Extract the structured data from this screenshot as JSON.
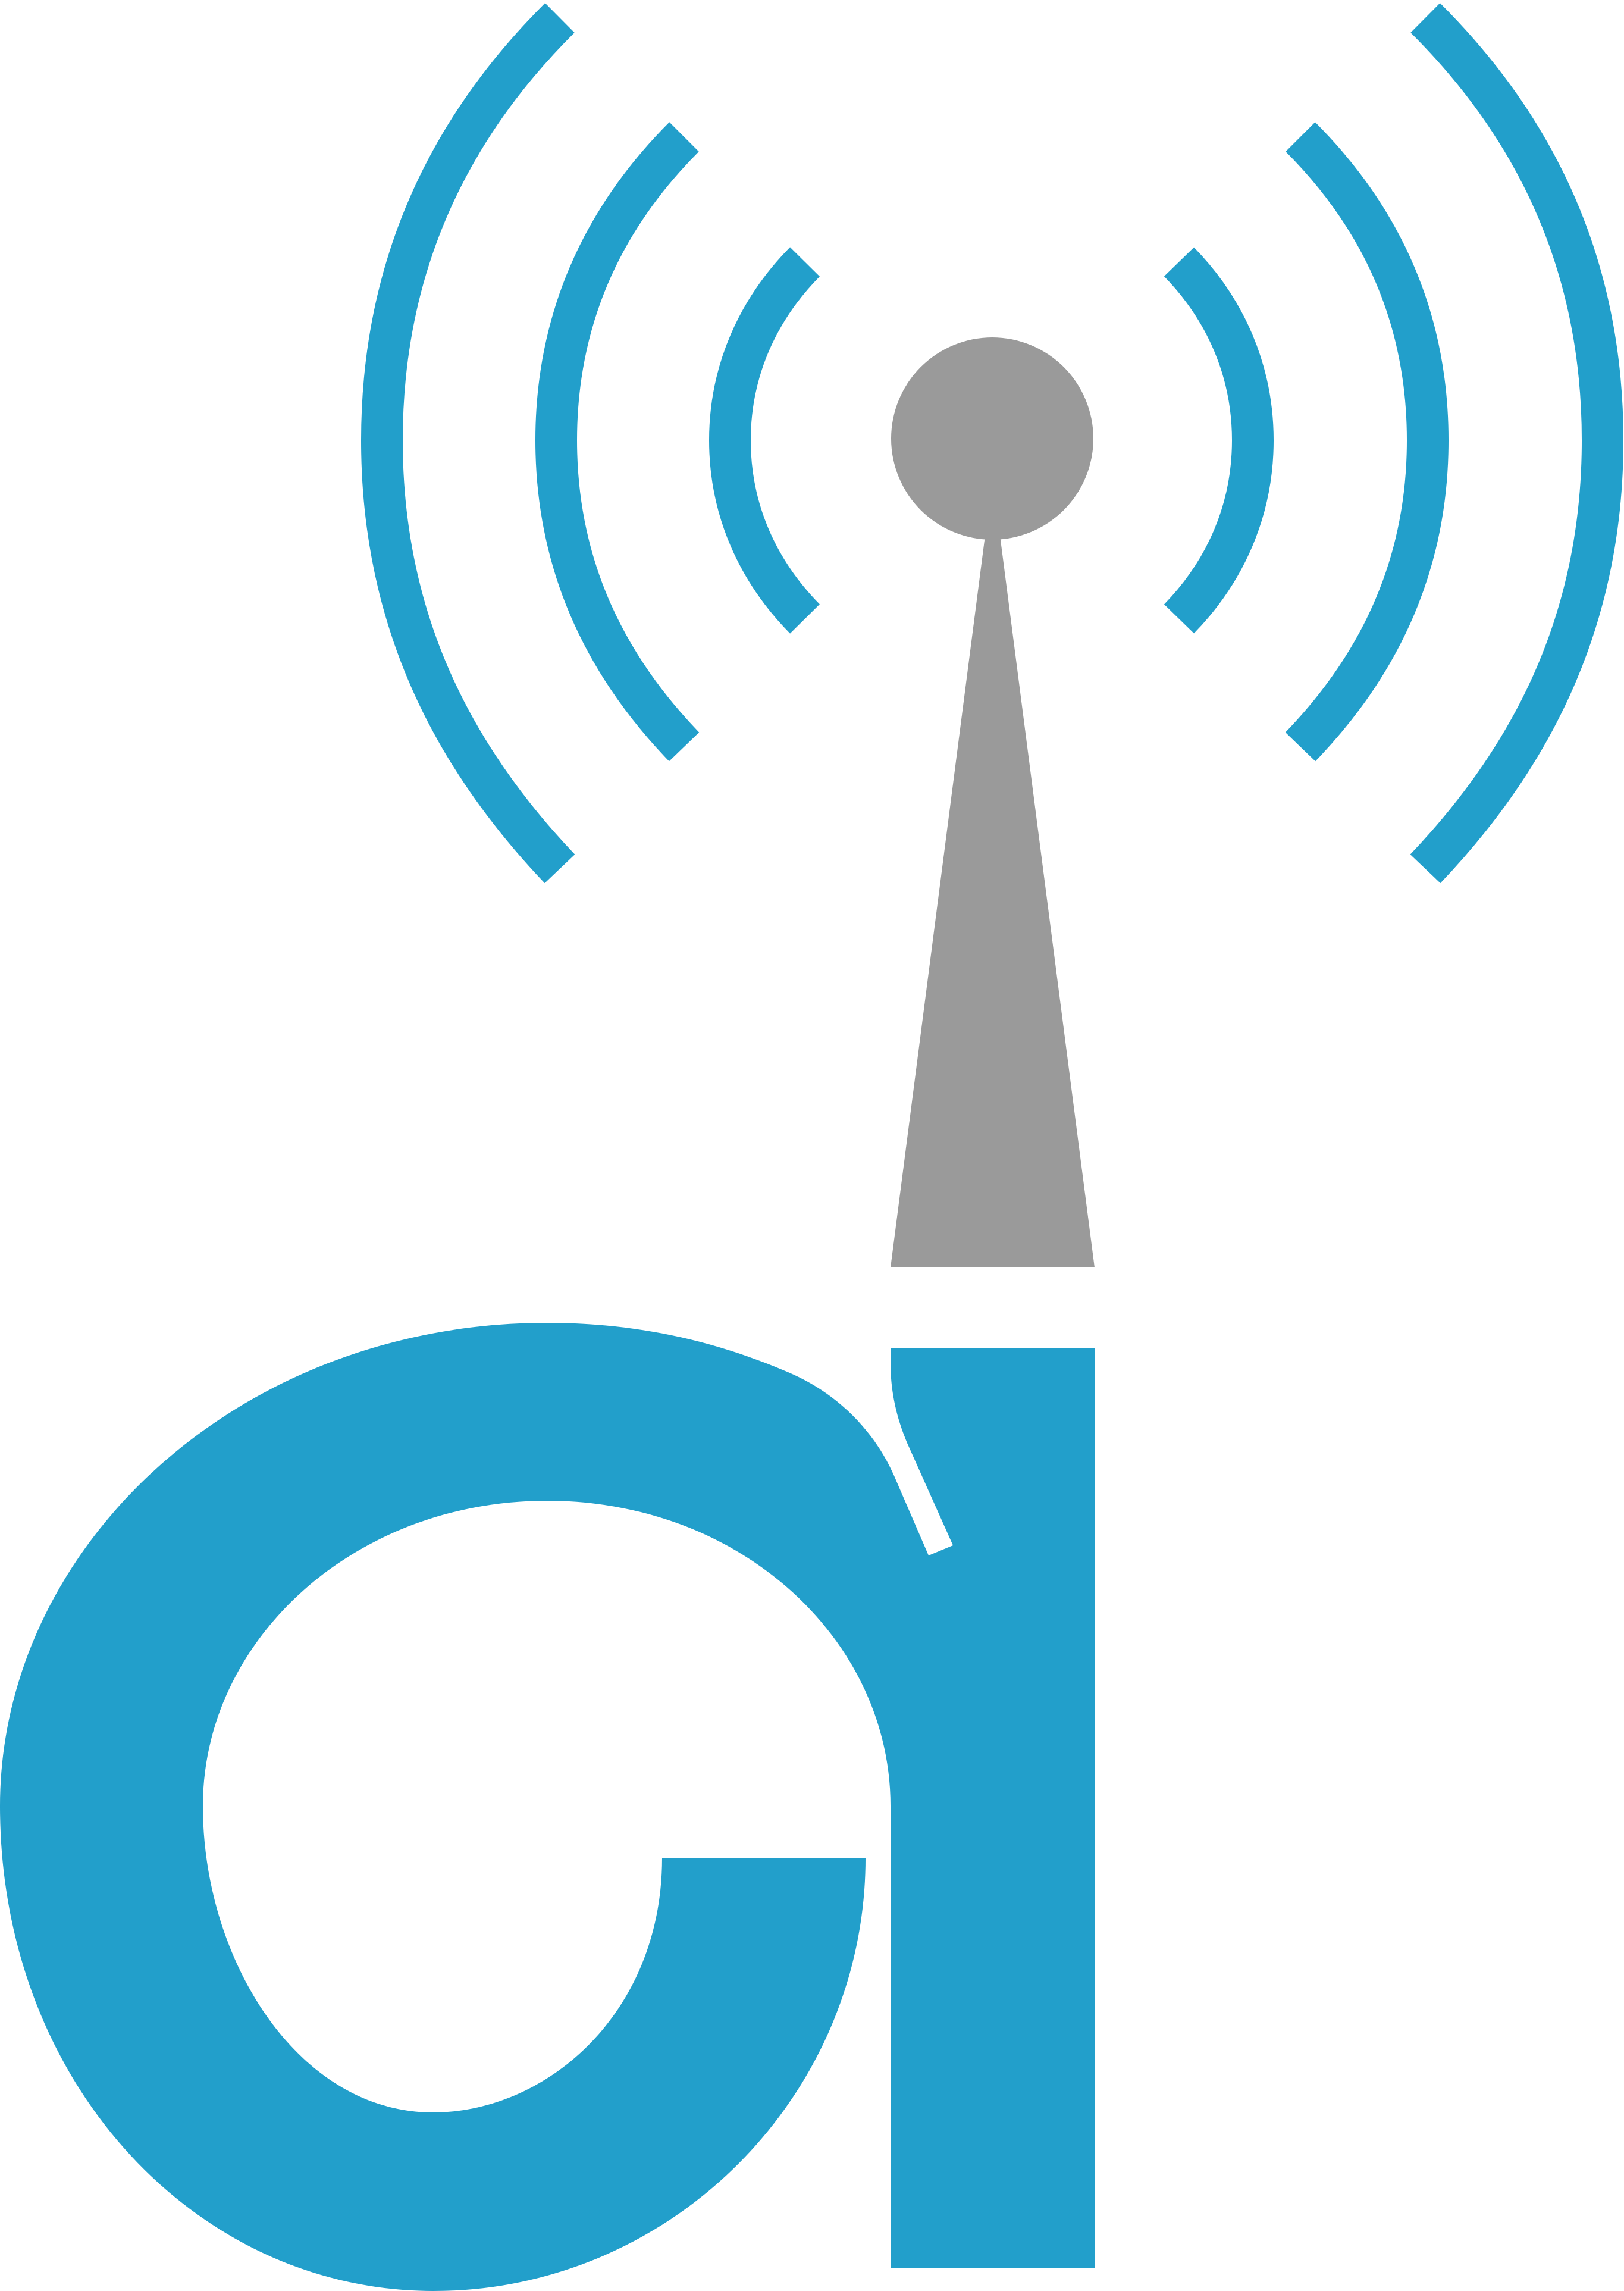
{
  "logo": {
    "name": "antenna-a-logo",
    "colors": {
      "primary": "#229FCB",
      "secondary": "#9A9A9A",
      "background": "#FFFFFF"
    },
    "icons": [
      "antenna-icon",
      "signal-wave-icon",
      "letter-a-icon"
    ]
  }
}
